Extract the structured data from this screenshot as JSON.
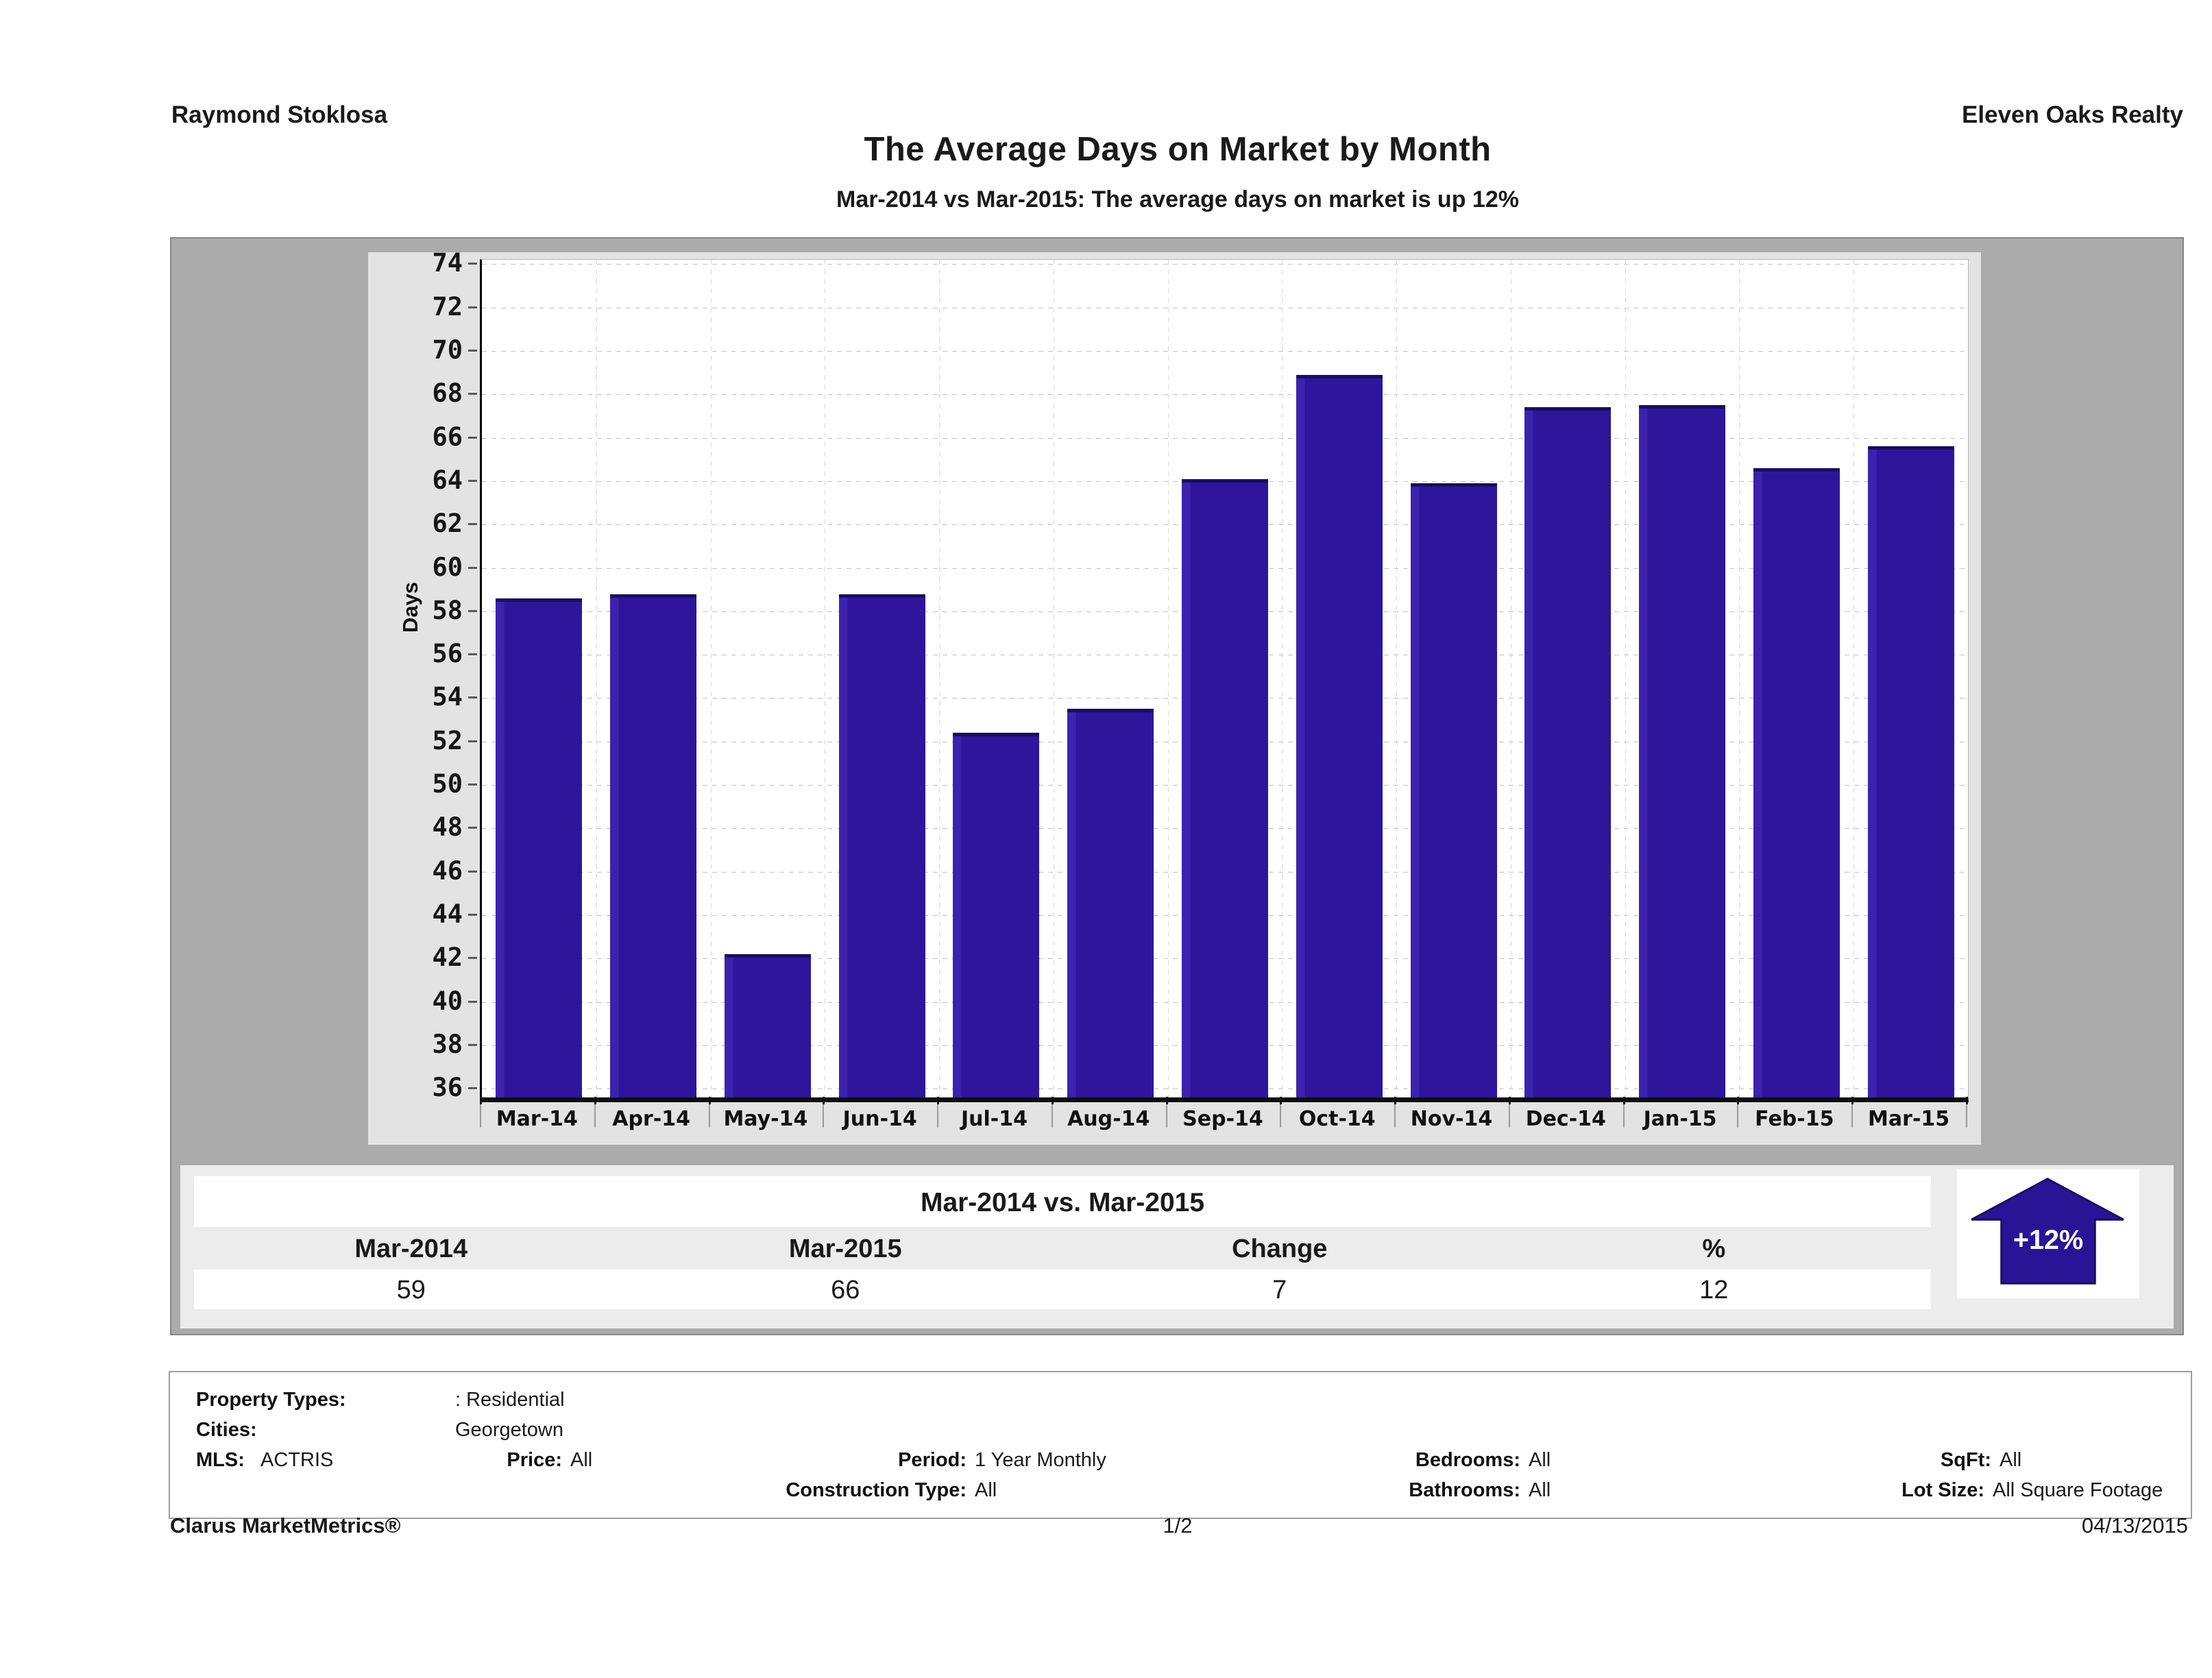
{
  "header": {
    "agent": "Raymond Stoklosa",
    "office": "Eleven Oaks Realty"
  },
  "title": "The Average Days on Market by Month",
  "subtitle": "Mar-2014 vs Mar-2015: The average days on market is up 12%",
  "chart_data": {
    "type": "bar",
    "title": "The Average Days on Market by Month",
    "xlabel": "",
    "ylabel": "Days",
    "categories": [
      "Mar-14",
      "Apr-14",
      "May-14",
      "Jun-14",
      "Jul-14",
      "Aug-14",
      "Sep-14",
      "Oct-14",
      "Nov-14",
      "Dec-14",
      "Jan-15",
      "Feb-15",
      "Mar-15"
    ],
    "values": [
      58.6,
      58.8,
      42.2,
      58.8,
      52.4,
      53.5,
      64.1,
      68.9,
      63.9,
      67.4,
      67.5,
      64.6,
      65.6
    ],
    "ylim": [
      35.6,
      74.2
    ],
    "yticks": {
      "min": 36,
      "max": 74,
      "step": 2
    },
    "grid": true,
    "legend": "none",
    "bar_color": "#2d169c",
    "bar_top_color": "#190d61"
  },
  "comparison": {
    "title": "Mar-2014 vs. Mar-2015",
    "columns": [
      "Mar-2014",
      "Mar-2015",
      "Change",
      "%"
    ],
    "values": [
      "59",
      "66",
      "7",
      "12"
    ],
    "arrow": {
      "direction": "up",
      "label": "+12%",
      "color": "#2a1496",
      "outline": "#1a0d66"
    }
  },
  "filters": {
    "property_types_label": "Property Types:",
    "property_types_value": ": Residential",
    "cities_label": "Cities:",
    "cities_value": "Georgetown",
    "mls_label": "MLS:",
    "mls_value": "ACTRIS",
    "price_label": "Price:",
    "price_value": "All",
    "period_label": "Period:",
    "period_value": "1 Year Monthly",
    "bedrooms_label": "Bedrooms:",
    "bedrooms_value": "All",
    "sqft_label": "SqFt:",
    "sqft_value": "All",
    "construction_label": "Construction Type:",
    "construction_value": "All",
    "bathrooms_label": "Bathrooms:",
    "bathrooms_value": "All",
    "lot_label": "Lot Size:",
    "lot_value": "All Square Footage"
  },
  "footer": {
    "brand": "Clarus MarketMetrics®",
    "page": "1/2",
    "date": "04/13/2015"
  }
}
